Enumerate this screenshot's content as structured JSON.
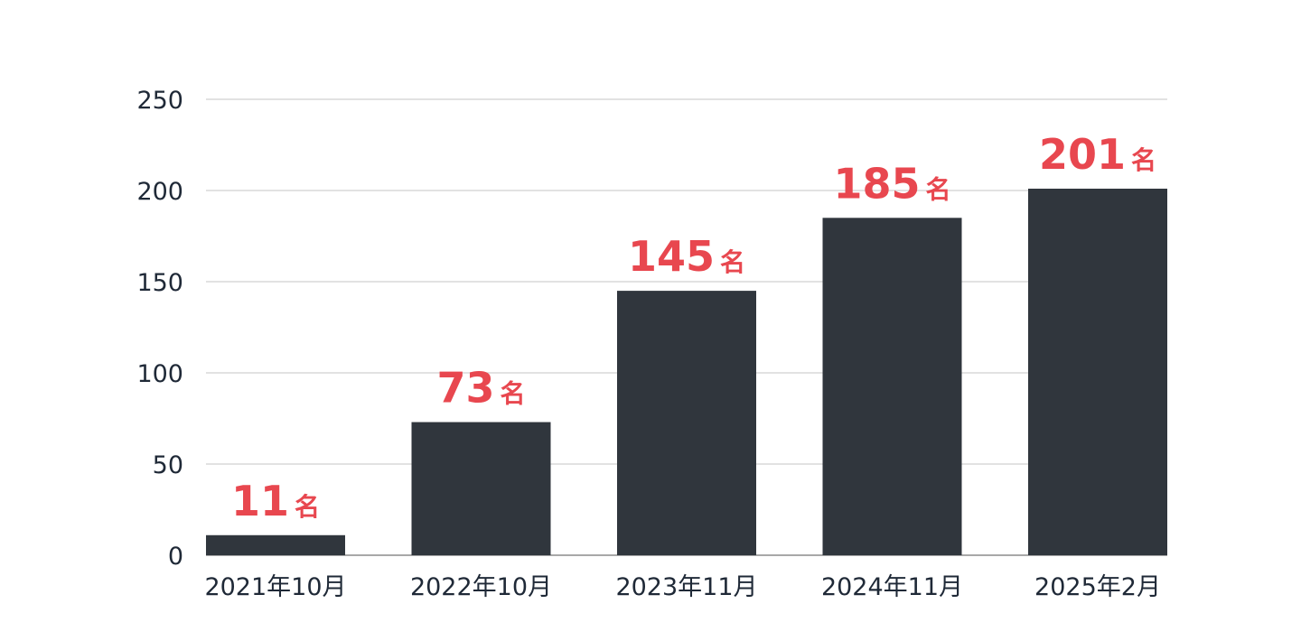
{
  "chart_data": {
    "type": "bar",
    "categories": [
      "2021年10月",
      "2022年10月",
      "2023年11月",
      "2024年11月",
      "2025年2月"
    ],
    "values": [
      11,
      73,
      145,
      185,
      201
    ],
    "value_unit": "名",
    "title": "",
    "xlabel": "",
    "ylabel": "",
    "ylim": [
      0,
      250
    ],
    "yticks": [
      "0",
      "50",
      "100",
      "150",
      "200",
      "250"
    ],
    "grid": true,
    "legend": "none",
    "colors": {
      "bar": "#30363d",
      "value_label": "#e8474f",
      "grid": "#d9d9d9",
      "axis_text": "#1f2937"
    }
  }
}
